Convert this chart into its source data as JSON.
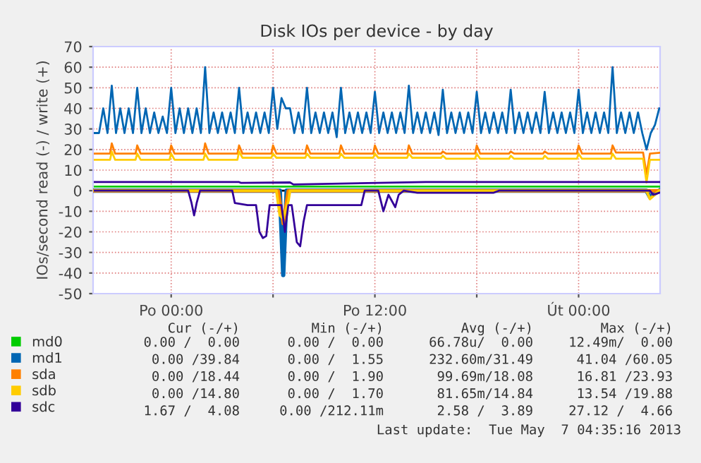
{
  "chart_data": {
    "type": "line",
    "title": "Disk IOs per device - by day",
    "ylabel": "IOs/second read (-) / write (+)",
    "xlim": [
      "2013-05-05T19:24",
      "2013-05-07T04:48"
    ],
    "xticks": [
      {
        "value": "2013-05-06T00:00",
        "label": "Po 00:00"
      },
      {
        "value": "2013-05-06T06:00",
        "label": null
      },
      {
        "value": "2013-05-06T12:00",
        "label": "Po 12:00"
      },
      {
        "value": "2013-05-06T18:00",
        "label": null
      },
      {
        "value": "2013-05-07T00:00",
        "label": "Út 00:00"
      }
    ],
    "ylim": [
      -50,
      70
    ],
    "yticks": [
      -50,
      -40,
      -30,
      -20,
      -10,
      0,
      10,
      20,
      30,
      40,
      50,
      60,
      70
    ],
    "grid": true,
    "legend": "bottom left",
    "marker": "none",
    "line_style": "solid",
    "ref_lines": [
      {
        "axis": "y",
        "value": 0,
        "color": "#000000"
      }
    ],
    "series": [
      {
        "name": "md0",
        "color": "#00cc00",
        "x": [
          "2013-05-05T19:30",
          "2013-05-07T04:45"
        ],
        "values": [
          2,
          2
        ]
      },
      {
        "name": "md1",
        "color": "#0066b3",
        "x": [
          "2013-05-05T19:30",
          "2013-05-05T19:45",
          "2013-05-05T20:00",
          "2013-05-05T20:15",
          "2013-05-05T20:30",
          "2013-05-05T20:45",
          "2013-05-05T21:00",
          "2013-05-05T21:15",
          "2013-05-05T21:30",
          "2013-05-05T21:45",
          "2013-05-05T22:00",
          "2013-05-05T22:15",
          "2013-05-05T22:30",
          "2013-05-05T22:45",
          "2013-05-05T23:00",
          "2013-05-05T23:15",
          "2013-05-05T23:30",
          "2013-05-05T23:45",
          "2013-05-06T00:00",
          "2013-05-06T00:15",
          "2013-05-06T00:30",
          "2013-05-06T00:45",
          "2013-05-06T01:00",
          "2013-05-06T01:15",
          "2013-05-06T01:30",
          "2013-05-06T01:45",
          "2013-05-06T02:00",
          "2013-05-06T02:15",
          "2013-05-06T02:30",
          "2013-05-06T02:45",
          "2013-05-06T03:00",
          "2013-05-06T03:15",
          "2013-05-06T03:30",
          "2013-05-06T03:45",
          "2013-05-06T04:00",
          "2013-05-06T04:15",
          "2013-05-06T04:30",
          "2013-05-06T04:45",
          "2013-05-06T05:00",
          "2013-05-06T05:15",
          "2013-05-06T05:30",
          "2013-05-06T05:45",
          "2013-05-06T06:00",
          "2013-05-06T06:15",
          "2013-05-06T06:30",
          "2013-05-06T06:45",
          "2013-05-06T07:00",
          "2013-05-06T07:15",
          "2013-05-06T07:30",
          "2013-05-06T07:45",
          "2013-05-06T08:00",
          "2013-05-06T08:15",
          "2013-05-06T08:30",
          "2013-05-06T08:45",
          "2013-05-06T09:00",
          "2013-05-06T09:15",
          "2013-05-06T09:30",
          "2013-05-06T09:45",
          "2013-05-06T10:00",
          "2013-05-06T10:15",
          "2013-05-06T10:30",
          "2013-05-06T10:45",
          "2013-05-06T11:00",
          "2013-05-06T11:15",
          "2013-05-06T11:30",
          "2013-05-06T11:45",
          "2013-05-06T12:00",
          "2013-05-06T12:15",
          "2013-05-06T12:30",
          "2013-05-06T12:45",
          "2013-05-06T13:00",
          "2013-05-06T13:15",
          "2013-05-06T13:30",
          "2013-05-06T13:45",
          "2013-05-06T14:00",
          "2013-05-06T14:15",
          "2013-05-06T14:30",
          "2013-05-06T14:45",
          "2013-05-06T15:00",
          "2013-05-06T15:15",
          "2013-05-06T15:30",
          "2013-05-06T15:45",
          "2013-05-06T16:00",
          "2013-05-06T16:15",
          "2013-05-06T16:30",
          "2013-05-06T16:45",
          "2013-05-06T17:00",
          "2013-05-06T17:15",
          "2013-05-06T17:30",
          "2013-05-06T17:45",
          "2013-05-06T18:00",
          "2013-05-06T18:15",
          "2013-05-06T18:30",
          "2013-05-06T18:45",
          "2013-05-06T19:00",
          "2013-05-06T19:15",
          "2013-05-06T19:30",
          "2013-05-06T19:45",
          "2013-05-06T20:00",
          "2013-05-06T20:15",
          "2013-05-06T20:30",
          "2013-05-06T20:45",
          "2013-05-06T21:00",
          "2013-05-06T21:15",
          "2013-05-06T21:30",
          "2013-05-06T21:45",
          "2013-05-06T22:00",
          "2013-05-06T22:15",
          "2013-05-06T22:30",
          "2013-05-06T22:45",
          "2013-05-06T23:00",
          "2013-05-06T23:15",
          "2013-05-06T23:30",
          "2013-05-06T23:45",
          "2013-05-07T00:00",
          "2013-05-07T00:15",
          "2013-05-07T00:30",
          "2013-05-07T00:45",
          "2013-05-07T01:00",
          "2013-05-07T01:15",
          "2013-05-07T01:30",
          "2013-05-07T01:45",
          "2013-05-07T02:00",
          "2013-05-07T02:15",
          "2013-05-07T02:30",
          "2013-05-07T02:45",
          "2013-05-07T03:00",
          "2013-05-07T03:15",
          "2013-05-07T03:30",
          "2013-05-07T03:45",
          "2013-05-07T04:00",
          "2013-05-07T04:15",
          "2013-05-07T04:30",
          "2013-05-07T04:45"
        ],
        "values": [
          28,
          28,
          40,
          28,
          51,
          28,
          40,
          28,
          40,
          28,
          50,
          28,
          40,
          28,
          38,
          28,
          36,
          28,
          50,
          28,
          40,
          28,
          40,
          28,
          40,
          28,
          60,
          28,
          38,
          28,
          38,
          28,
          38,
          28,
          50,
          28,
          38,
          28,
          38,
          28,
          38,
          28,
          50,
          30,
          45,
          40,
          40,
          28,
          38,
          28,
          50,
          28,
          38,
          28,
          38,
          28,
          38,
          26,
          50,
          28,
          38,
          28,
          38,
          28,
          38,
          28,
          48,
          28,
          38,
          28,
          38,
          28,
          38,
          28,
          51,
          28,
          38,
          28,
          38,
          28,
          38,
          27,
          49,
          28,
          38,
          28,
          38,
          28,
          38,
          28,
          48,
          28,
          38,
          28,
          38,
          28,
          38,
          28,
          49,
          28,
          38,
          28,
          38,
          28,
          38,
          28,
          48,
          28,
          38,
          28,
          38,
          28,
          38,
          28,
          49,
          28,
          38,
          28,
          38,
          28,
          38,
          28,
          60,
          28,
          38,
          28,
          38,
          28,
          38,
          28,
          20,
          28,
          32,
          40
        ]
      },
      {
        "name": "sda",
        "color": "#ff8000",
        "x": [
          "2013-05-05T19:30",
          "2013-05-05T20:24",
          "2013-05-05T20:30",
          "2013-05-05T20:42",
          "2013-05-05T21:54",
          "2013-05-05T22:00",
          "2013-05-05T22:12",
          "2013-05-05T23:54",
          "2013-05-06T00:00",
          "2013-05-06T00:12",
          "2013-05-06T01:54",
          "2013-05-06T02:00",
          "2013-05-06T02:12",
          "2013-05-06T03:54",
          "2013-05-06T04:00",
          "2013-05-06T04:12",
          "2013-05-06T05:54",
          "2013-05-06T06:00",
          "2013-05-06T06:12",
          "2013-05-06T07:54",
          "2013-05-06T08:00",
          "2013-05-06T08:12",
          "2013-05-06T09:54",
          "2013-05-06T10:00",
          "2013-05-06T10:12",
          "2013-05-06T11:54",
          "2013-05-06T12:00",
          "2013-05-06T12:12",
          "2013-05-06T13:54",
          "2013-05-06T14:00",
          "2013-05-06T14:12",
          "2013-05-06T15:54",
          "2013-05-06T16:00",
          "2013-05-06T16:12",
          "2013-05-06T17:54",
          "2013-05-06T18:00",
          "2013-05-06T18:12",
          "2013-05-06T19:54",
          "2013-05-06T20:00",
          "2013-05-06T20:12",
          "2013-05-06T21:54",
          "2013-05-06T22:00",
          "2013-05-06T22:12",
          "2013-05-06T23:54",
          "2013-05-07T00:00",
          "2013-05-07T00:12",
          "2013-05-07T01:54",
          "2013-05-07T02:00",
          "2013-05-07T02:12",
          "2013-05-07T03:48",
          "2013-05-07T04:00",
          "2013-05-07T04:12",
          "2013-05-07T04:45"
        ],
        "values": [
          18,
          18,
          23,
          18,
          18,
          22,
          18,
          18,
          22,
          18,
          18,
          23,
          18,
          18,
          22,
          18,
          18,
          22,
          18,
          18,
          22,
          18,
          18,
          22,
          18,
          18,
          22,
          18,
          18,
          22,
          18,
          18,
          19,
          18,
          18,
          22,
          18,
          18,
          19,
          18,
          18,
          19,
          18,
          18,
          22,
          18,
          18,
          22,
          18.5,
          18.5,
          8,
          18,
          18.4
        ]
      },
      {
        "name": "sdb",
        "color": "#ffcc00",
        "x": [
          "2013-05-05T19:30",
          "2013-05-05T20:24",
          "2013-05-05T20:30",
          "2013-05-05T20:42",
          "2013-05-05T21:54",
          "2013-05-05T22:00",
          "2013-05-05T22:12",
          "2013-05-05T23:54",
          "2013-05-06T00:00",
          "2013-05-06T00:12",
          "2013-05-06T01:54",
          "2013-05-06T02:00",
          "2013-05-06T02:12",
          "2013-05-06T03:54",
          "2013-05-06T04:00",
          "2013-05-06T04:12",
          "2013-05-06T05:54",
          "2013-05-06T06:00",
          "2013-05-06T06:12",
          "2013-05-06T07:54",
          "2013-05-06T08:00",
          "2013-05-06T08:12",
          "2013-05-06T09:54",
          "2013-05-06T10:00",
          "2013-05-06T10:12",
          "2013-05-06T11:54",
          "2013-05-06T12:00",
          "2013-05-06T12:12",
          "2013-05-06T13:54",
          "2013-05-06T14:00",
          "2013-05-06T14:12",
          "2013-05-06T15:54",
          "2013-05-06T16:00",
          "2013-05-06T16:12",
          "2013-05-06T17:54",
          "2013-05-06T18:00",
          "2013-05-06T18:12",
          "2013-05-06T19:54",
          "2013-05-06T20:00",
          "2013-05-06T20:12",
          "2013-05-06T21:54",
          "2013-05-06T22:00",
          "2013-05-06T22:12",
          "2013-05-06T23:54",
          "2013-05-07T00:00",
          "2013-05-07T00:12",
          "2013-05-07T01:54",
          "2013-05-07T02:00",
          "2013-05-07T02:12",
          "2013-05-07T03:48",
          "2013-05-07T04:00",
          "2013-05-07T04:12",
          "2013-05-07T04:45"
        ],
        "values": [
          15,
          15,
          19,
          15,
          15,
          18,
          15,
          15,
          18,
          15,
          15,
          18,
          15,
          15,
          19,
          16,
          16,
          18,
          16,
          16,
          18,
          16,
          16,
          18,
          16,
          16,
          18,
          16,
          16,
          18,
          16,
          16,
          17,
          15.5,
          15.5,
          18,
          15.5,
          15.5,
          17,
          15.5,
          15.5,
          17,
          15.5,
          15.5,
          18,
          15.5,
          15.5,
          18,
          15.5,
          15.5,
          4,
          15,
          15
        ]
      },
      {
        "name": "sdc",
        "color": "#330099",
        "x": [
          "2013-05-05T19:30",
          "2013-05-06T04:00",
          "2013-05-06T04:06",
          "2013-05-06T07:00",
          "2013-05-06T07:12",
          "2013-05-06T15:00",
          "2013-05-06T15:12",
          "2013-05-07T04:45"
        ],
        "values": [
          4.2,
          4.2,
          3.8,
          4,
          3,
          4.2,
          4.2,
          4.2
        ]
      },
      {
        "color": "#0066b3",
        "x": [
          "2013-05-05T19:30",
          "2013-05-06T06:24",
          "2013-05-06T06:36",
          "2013-05-06T06:48",
          "2013-05-07T04:00",
          "2013-05-07T04:12",
          "2013-05-07T04:45"
        ],
        "values": [
          0,
          0,
          -41,
          0,
          0,
          -3,
          0
        ]
      },
      {
        "color": "#ff8000",
        "x": [
          "2013-05-05T19:30",
          "2013-05-06T06:18",
          "2013-05-06T06:36",
          "2013-05-06T06:54",
          "2013-05-07T04:45"
        ],
        "values": [
          0,
          0,
          -16,
          0,
          0
        ]
      },
      {
        "color": "#ffcc00",
        "x": [
          "2013-05-05T19:30",
          "2013-05-06T06:12",
          "2013-05-06T06:24",
          "2013-05-06T06:36",
          "2013-05-06T06:54",
          "2013-05-06T07:00",
          "2013-05-07T04:00",
          "2013-05-07T04:12",
          "2013-05-07T04:45"
        ],
        "values": [
          0,
          0,
          -12,
          -13.5,
          -5,
          0,
          0,
          -4,
          0
        ]
      },
      {
        "color": "#330099",
        "x": [
          "2013-05-05T19:30",
          "2013-05-06T01:00",
          "2013-05-06T01:12",
          "2013-05-06T01:21",
          "2013-05-06T01:30",
          "2013-05-06T01:42",
          "2013-05-06T03:36",
          "2013-05-06T03:45",
          "2013-05-06T04:30",
          "2013-05-06T05:00",
          "2013-05-06T05:12",
          "2013-05-06T05:24",
          "2013-05-06T05:36",
          "2013-05-06T05:48",
          "2013-05-06T06:30",
          "2013-05-06T06:42",
          "2013-05-06T06:54",
          "2013-05-06T07:06",
          "2013-05-06T07:24",
          "2013-05-06T07:36",
          "2013-05-06T07:48",
          "2013-05-06T08:00",
          "2013-05-06T11:12",
          "2013-05-06T11:24",
          "2013-05-06T12:12",
          "2013-05-06T12:30",
          "2013-05-06T12:48",
          "2013-05-06T13:12",
          "2013-05-06T13:24",
          "2013-05-06T13:42",
          "2013-05-06T14:30",
          "2013-05-06T19:00",
          "2013-05-06T19:18",
          "2013-05-07T04:12",
          "2013-05-07T04:24",
          "2013-05-07T04:45"
        ],
        "values": [
          0,
          0,
          -6,
          -12,
          -6,
          0,
          0,
          -6,
          -7,
          -7,
          -20,
          -23,
          -22,
          -7,
          -7,
          -20,
          -7,
          -7,
          -25,
          -27,
          -15,
          -7,
          -7,
          0,
          0,
          -10,
          -2,
          -8,
          -2,
          0,
          -1,
          -1,
          0,
          0,
          -2,
          -1
        ]
      }
    ],
    "annotations": [
      "Cur (-/+)",
      "Min (-/+)",
      "Avg (-/+)",
      "Max (-/+)",
      "0.00 /  0.00",
      "0.00 /  0.00",
      "66.78u/  0.00",
      "12.49m/  0.00",
      "0.00 /39.84",
      "0.00 /  1.55",
      "232.60m/31.49",
      "41.04 /60.05",
      "0.00 /18.44",
      "0.00 /  1.90",
      "99.69m/18.08",
      "16.81 /23.93",
      "0.00 /14.80",
      "0.00 /  1.70",
      "81.65m/14.84",
      "13.54 /19.88",
      "1.67 /  4.08",
      "0.00 /212.11m",
      "2.58 /  3.89",
      "27.12 /  4.66",
      "Last update:  Tue May  7 04:35:16 2013"
    ]
  }
}
